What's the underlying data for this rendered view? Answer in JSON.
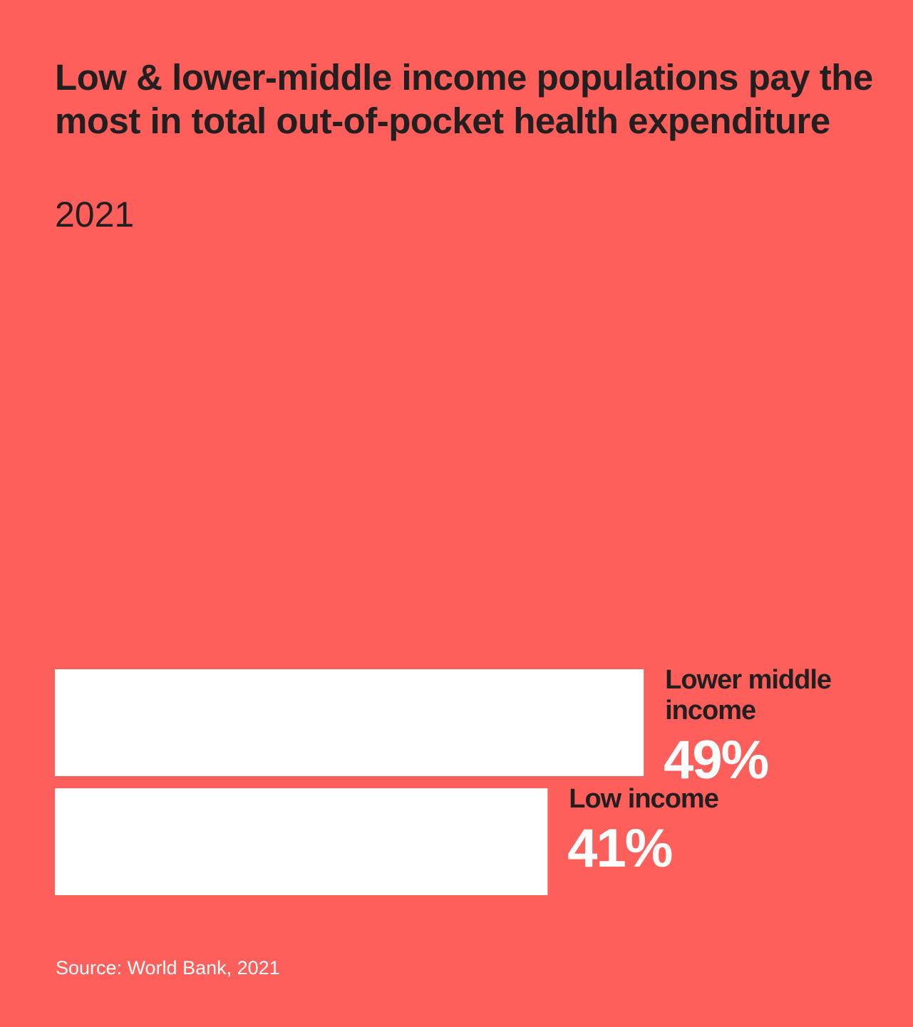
{
  "chart_data": {
    "type": "bar",
    "orientation": "horizontal",
    "title": "Low & lower-middle income populations pay the most in total out-of-pocket health expenditure",
    "subtitle": "2021",
    "categories": [
      "Lower middle income",
      "Low income"
    ],
    "category_lines": [
      [
        "Lower middle",
        "income"
      ],
      [
        "Low income"
      ]
    ],
    "values": [
      49,
      41
    ],
    "value_labels": [
      "49%",
      "41%"
    ],
    "unit": "%",
    "xlim": [
      0,
      100
    ],
    "grid": false,
    "legend": "none",
    "bar_color": "#ffffff",
    "background_color": "#ff5f5a",
    "label_color": "#231f20",
    "value_label_color": "#ffffff",
    "source": "Source: World Bank, 2021"
  }
}
